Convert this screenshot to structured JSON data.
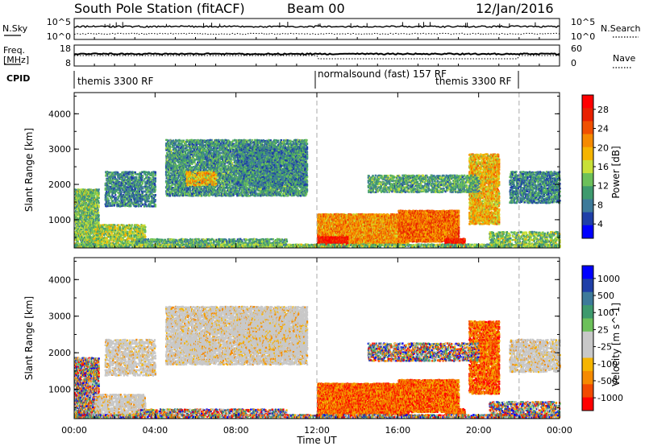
{
  "header": {
    "station": "South Pole Station (fitACF)",
    "beam": "Beam 00",
    "date": "12/Jan/2016"
  },
  "strips": {
    "nsky_label": "N.Sky",
    "nsearch_label": "N.Search",
    "nsky_ticks": [
      "10^5",
      "10^0"
    ],
    "nsearch_ticks": [
      "10^5",
      "10^0"
    ],
    "freq_label": "Freq.",
    "freq_unit": "[MHz]",
    "freq_ticks": [
      "18",
      "8"
    ],
    "nave_label": "Nave",
    "nave_ticks": [
      "60",
      "0"
    ],
    "cpid_label": "CPID",
    "cpid_segments": [
      {
        "label": "themis 3300 RF",
        "start_hour": 0,
        "end_hour": 12
      },
      {
        "label": "normalsound (fast) 157 RF",
        "start_hour": 12,
        "end_hour": 22
      },
      {
        "label": "themis 3300 RF",
        "start_hour": 18,
        "end_hour": 22
      }
    ]
  },
  "colors": {
    "power": [
      "#0000ff",
      "#1f3fa8",
      "#3d7a9a",
      "#3e9a6e",
      "#6cc05a",
      "#c8e038",
      "#f5b400",
      "#f58a00",
      "#f05000",
      "#e82000",
      "#ff0000"
    ],
    "velocity": [
      "#ff0000",
      "#f24a00",
      "#f58a00",
      "#f5b400",
      "#c8c8c8",
      "#c8c8c8",
      "#6cc05a",
      "#3e9a6e",
      "#3d7a9a",
      "#1f3fa8",
      "#0000ff"
    ]
  },
  "chart_data": [
    {
      "type": "heatmap",
      "name": "power",
      "ylabel": "Slant Range [km]",
      "yticks": [
        "4000",
        "3000",
        "2000",
        "1000"
      ],
      "ylim": [
        200,
        4600
      ],
      "colorbar_label": "Power [dB]",
      "colorbar_ticks": [
        "28",
        "24",
        "20",
        "16",
        "12",
        "8",
        "4"
      ],
      "clim": [
        0,
        30
      ]
    },
    {
      "type": "heatmap",
      "name": "velocity",
      "ylabel": "Slant Range [km]",
      "yticks": [
        "4000",
        "3000",
        "2000",
        "1000"
      ],
      "ylim": [
        200,
        4600
      ],
      "colorbar_label": "Velocity [m s^-1]",
      "colorbar_ticks": [
        "1000",
        "500",
        "100",
        "25",
        "-25",
        "-100",
        "-500",
        "-1000"
      ]
    }
  ],
  "time_axis": {
    "label": "Time UT",
    "ticks": [
      "00:00",
      "04:00",
      "08:00",
      "12:00",
      "16:00",
      "20:00",
      "00:00"
    ],
    "xlim_hours": [
      0,
      24
    ]
  }
}
